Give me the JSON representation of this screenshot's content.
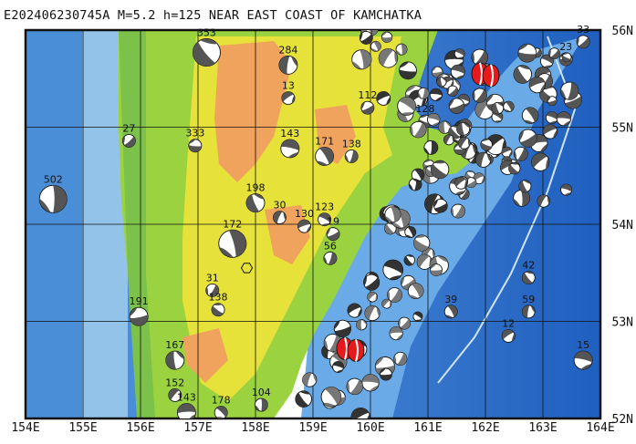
{
  "title": "E202406230745A M=5.2 h=125 NEAR EAST COAST OF KAMCHATKA",
  "map": {
    "lon_range": [
      154,
      164
    ],
    "lat_range": [
      52,
      56
    ],
    "lon_labels": [
      "154E",
      "155E",
      "156E",
      "157E",
      "158E",
      "159E",
      "160E",
      "161E",
      "162E",
      "163E",
      "164E"
    ],
    "lat_labels": [
      "56N",
      "55N",
      "54N",
      "53N",
      "52N"
    ],
    "colors": {
      "deep_ocean": "#1f5fbf",
      "ocean": "#4a8ed8",
      "shelf": "#93c3e8",
      "lowland": "#9ad33f",
      "upland": "#e6e23a",
      "highland": "#f0a35c",
      "main_event": "#e41a1c",
      "grid": "#111111"
    }
  },
  "focal_mechanisms": [
    {
      "label": "502",
      "lon": 154.48,
      "lat": 54.26,
      "size": "large"
    },
    {
      "label": "27",
      "lon": 155.8,
      "lat": 54.86,
      "size": "small"
    },
    {
      "label": "333",
      "lon": 156.95,
      "lat": 54.81,
      "size": "small"
    },
    {
      "label": "353",
      "lon": 157.15,
      "lat": 55.77,
      "size": "large"
    },
    {
      "label": "284",
      "lon": 158.57,
      "lat": 55.64,
      "size": "medium"
    },
    {
      "label": "13",
      "lon": 158.57,
      "lat": 55.3,
      "size": "small"
    },
    {
      "label": "143",
      "lon": 158.6,
      "lat": 54.78,
      "size": "medium"
    },
    {
      "label": "171",
      "lon": 159.2,
      "lat": 54.7,
      "size": "medium"
    },
    {
      "label": "138",
      "lon": 159.67,
      "lat": 54.7,
      "size": "small"
    },
    {
      "label": "112",
      "lon": 159.95,
      "lat": 55.2,
      "size": "small"
    },
    {
      "label": "128",
      "lon": 160.95,
      "lat": 55.06,
      "size": "small"
    },
    {
      "label": "198",
      "lon": 158.0,
      "lat": 54.22,
      "size": "medium"
    },
    {
      "label": "30",
      "lon": 158.42,
      "lat": 54.07,
      "size": "small"
    },
    {
      "label": "130",
      "lon": 158.85,
      "lat": 53.98,
      "size": "small"
    },
    {
      "label": "123",
      "lon": 159.2,
      "lat": 54.05,
      "size": "small"
    },
    {
      "label": "172",
      "lon": 157.6,
      "lat": 53.8,
      "size": "large"
    },
    {
      "label": "31",
      "lon": 157.25,
      "lat": 53.32,
      "size": "small"
    },
    {
      "label": "191",
      "lon": 155.97,
      "lat": 53.05,
      "size": "medium"
    },
    {
      "label": "138",
      "lon": 157.35,
      "lat": 53.12,
      "size": "small"
    },
    {
      "label": "167",
      "lon": 156.6,
      "lat": 52.6,
      "size": "medium"
    },
    {
      "label": "152",
      "lon": 156.6,
      "lat": 52.24,
      "size": "small"
    },
    {
      "label": "143",
      "lon": 156.8,
      "lat": 52.06,
      "size": "medium"
    },
    {
      "label": "178",
      "lon": 157.4,
      "lat": 52.06,
      "size": "small"
    },
    {
      "label": "104",
      "lon": 158.1,
      "lat": 52.14,
      "size": "small"
    },
    {
      "label": "33",
      "lon": 163.7,
      "lat": 55.88,
      "size": "small"
    },
    {
      "label": "23",
      "lon": 163.4,
      "lat": 55.7,
      "size": "small"
    },
    {
      "label": "42",
      "lon": 162.75,
      "lat": 53.45,
      "size": "small"
    },
    {
      "label": "59",
      "lon": 162.75,
      "lat": 53.1,
      "size": "small"
    },
    {
      "label": "12",
      "lon": 162.4,
      "lat": 52.85,
      "size": "small"
    },
    {
      "label": "15",
      "lon": 163.7,
      "lat": 52.6,
      "size": "medium"
    },
    {
      "label": "39",
      "lon": 161.4,
      "lat": 53.1,
      "size": "small"
    },
    {
      "label": "56",
      "lon": 159.3,
      "lat": 53.65,
      "size": "small"
    },
    {
      "label": "19",
      "lon": 159.35,
      "lat": 53.9,
      "size": "small"
    }
  ],
  "main_events": [
    {
      "lon": 162.0,
      "lat": 55.55,
      "shape": "pair"
    },
    {
      "lon": 159.65,
      "lat": 52.72,
      "shape": "pair"
    }
  ]
}
